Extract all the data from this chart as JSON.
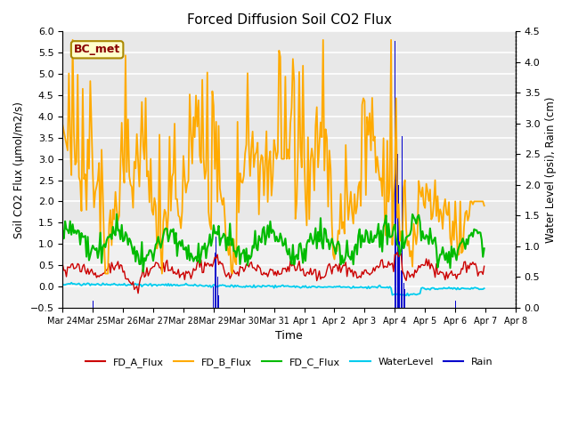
{
  "title": "Forced Diffusion Soil CO2 Flux",
  "xlabel": "Time",
  "ylabel_left": "Soil CO2 Flux (μmol/m2/s)",
  "ylabel_right": "Water Level (psi), Rain (cm)",
  "ylim_left": [
    -0.5,
    6.0
  ],
  "ylim_right": [
    0.0,
    4.5
  ],
  "annotation": "BC_met",
  "colors": {
    "FD_A_Flux": "#cc0000",
    "FD_B_Flux": "#ffaa00",
    "FD_C_Flux": "#00bb00",
    "WaterLevel": "#00ccee",
    "Rain": "#0000cc"
  },
  "tick_labels": [
    "Mar 24",
    "Mar 25",
    "Mar 26",
    "Mar 27",
    "Mar 28",
    "Mar 29",
    "Mar 30",
    "Mar 31",
    "Apr 1",
    "Apr 2",
    "Apr 3",
    "Apr 4",
    "Apr 5",
    "Apr 6",
    "Apr 7",
    "Apr 8"
  ],
  "n_points": 336,
  "yticks_left": [
    -0.5,
    0.0,
    0.5,
    1.0,
    1.5,
    2.0,
    2.5,
    3.0,
    3.5,
    4.0,
    4.5,
    5.0,
    5.5,
    6.0
  ],
  "yticks_right": [
    0.0,
    0.5,
    1.0,
    1.5,
    2.0,
    2.5,
    3.0,
    3.5,
    4.0,
    4.5
  ],
  "bg_dark": "#e8e8e8",
  "bg_light": "#f0f0f0"
}
